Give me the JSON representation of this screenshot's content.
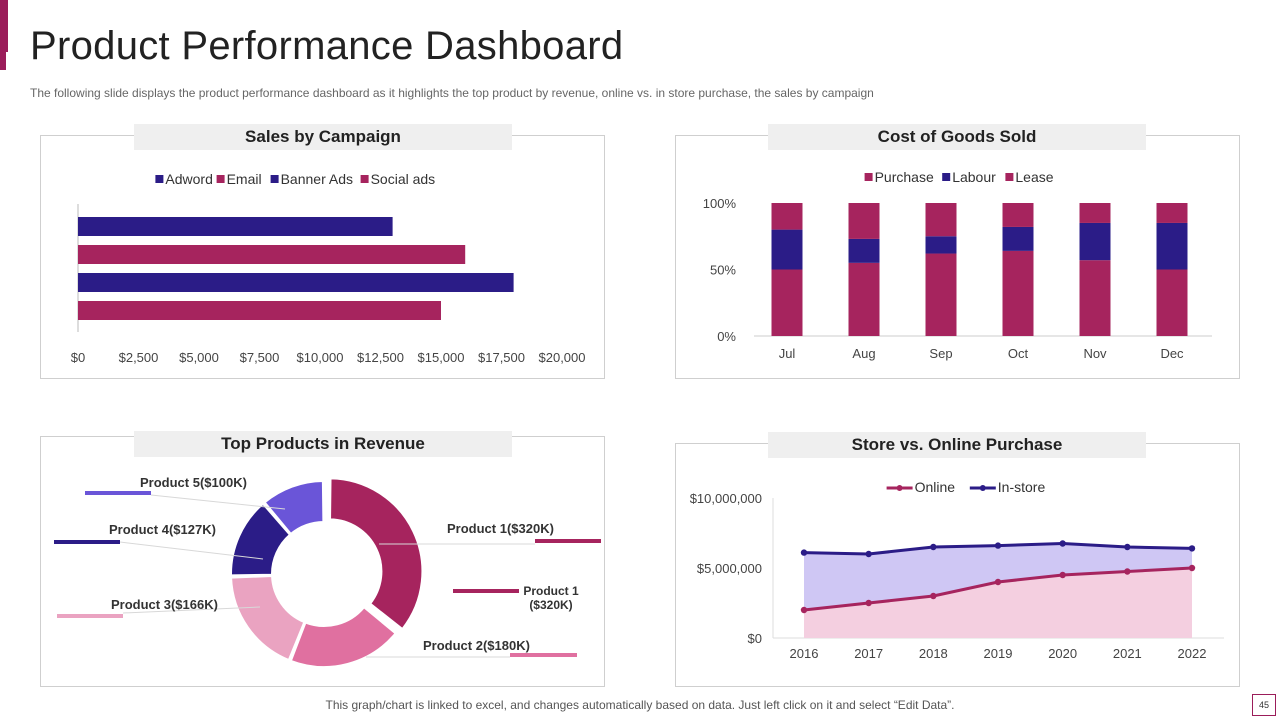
{
  "header": {
    "title": "Product Performance Dashboard",
    "subtitle": "The following slide displays the product performance dashboard as it highlights the top product by revenue, online vs. in store purchase, the sales by campaign"
  },
  "footer": {
    "note": "This graph/chart is linked to excel, and changes automatically based on data. Just left click on it and select “Edit Data”.",
    "page_number": "45"
  },
  "colors": {
    "navy": "#2b1c87",
    "magenta": "#a6245e",
    "pink": "#e070a0",
    "light_pink": "#eaa3c1",
    "purple": "#6a55d8",
    "online_fill": "#f4cfe0",
    "instore_fill": "#cfc7f4"
  },
  "chart_data": [
    {
      "id": "sales_by_campaign",
      "type": "bar",
      "orientation": "horizontal",
      "title": "Sales by Campaign",
      "series": [
        {
          "name": "Adword",
          "color": "#2b1c87",
          "value": 13000
        },
        {
          "name": "Email",
          "color": "#a6245e",
          "value": 16000
        },
        {
          "name": "Banner Ads",
          "color": "#2b1c87",
          "value": 18000
        },
        {
          "name": "Social ads",
          "color": "#a6245e",
          "value": 15000
        }
      ],
      "xlim": [
        0,
        20000
      ],
      "ticks": [
        "$0",
        "$2,500",
        "$5,000",
        "$7,500",
        "$10,000",
        "$12,500",
        "$15,000",
        "$17,500",
        "$20,000"
      ],
      "legend": "top"
    },
    {
      "id": "cost_of_goods_sold",
      "type": "bar",
      "stacked": true,
      "percent": true,
      "title": "Cost of Goods Sold",
      "categories": [
        "Jul",
        "Aug",
        "Sep",
        "Oct",
        "Nov",
        "Dec"
      ],
      "series": [
        {
          "name": "Purchase",
          "color": "#a6245e",
          "values": [
            50,
            55,
            62,
            64,
            57,
            50
          ]
        },
        {
          "name": "Labour",
          "color": "#2b1c87",
          "values": [
            30,
            18,
            13,
            18,
            28,
            35
          ]
        },
        {
          "name": "Lease",
          "color": "#a6245e",
          "values": [
            20,
            27,
            25,
            18,
            15,
            15
          ]
        }
      ],
      "ylim": [
        0,
        100
      ],
      "ticks": [
        "0%",
        "50%",
        "100%"
      ],
      "legend": "top"
    },
    {
      "id": "top_products_revenue",
      "type": "pie",
      "donut": true,
      "title": "Top Products in Revenue",
      "slices": [
        {
          "label": "Product 1($320K)",
          "value": 320,
          "color": "#a6245e"
        },
        {
          "label": "Product 2($180K)",
          "value": 180,
          "color": "#e070a0"
        },
        {
          "label": "Product 3($166K)",
          "value": 166,
          "color": "#eaa3c1"
        },
        {
          "label": "Product 4($127K)",
          "value": 127,
          "color": "#2b1c87"
        },
        {
          "label": "Product 5($100K)",
          "value": 100,
          "color": "#6a55d8"
        }
      ],
      "extra_label": {
        "line1": "Product 1",
        "line2": "($320K)"
      }
    },
    {
      "id": "store_vs_online",
      "type": "area",
      "title": "Store vs. Online Purchase",
      "x": [
        "2016",
        "2017",
        "2018",
        "2019",
        "2020",
        "2021",
        "2022"
      ],
      "series": [
        {
          "name": "Online",
          "color": "#a6245e",
          "values": [
            2000000,
            2500000,
            3000000,
            4000000,
            4500000,
            4750000,
            5000000
          ]
        },
        {
          "name": "In-store",
          "color": "#2b1c87",
          "values": [
            6100000,
            6000000,
            6500000,
            6600000,
            6750000,
            6500000,
            6400000
          ]
        }
      ],
      "ylim": [
        0,
        10000000
      ],
      "ticks": [
        "$0",
        "$5,000,000",
        "$10,000,000"
      ],
      "legend": "top"
    }
  ]
}
